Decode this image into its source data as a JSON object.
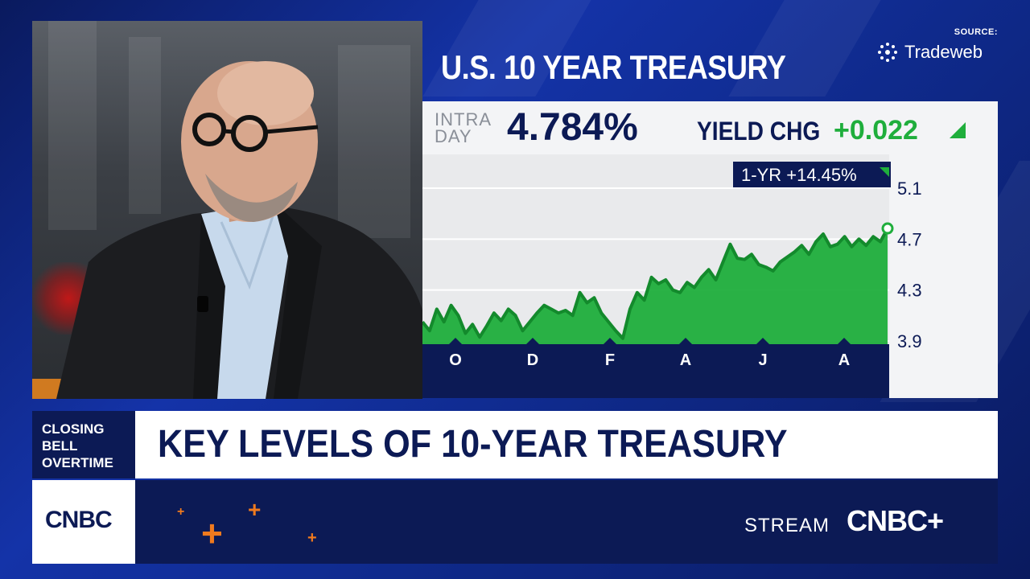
{
  "chart_title": "U.S. 10 YEAR TREASURY",
  "source_label": "SOURCE:",
  "source_brand": "Tradeweb",
  "quote": {
    "intra_line1": "INTRA",
    "intra_line2": "DAY",
    "price": "4.784%",
    "yield_chg_label": "YIELD CHG",
    "yield_chg_value": "+0.022"
  },
  "badge": "1-YR +14.45%",
  "colors": {
    "accent_green": "#1fae3c",
    "navy": "#0c1a55",
    "orange": "#f07a1e"
  },
  "chart_data": {
    "type": "area",
    "title": "U.S. 10 YEAR TREASURY",
    "xlabel": "",
    "ylabel": "",
    "x_tick_labels": [
      "O",
      "D",
      "F",
      "A",
      "J",
      "A"
    ],
    "y_tick_labels": [
      "5.1",
      "4.7",
      "4.3",
      "3.9"
    ],
    "y_ticks": [
      5.1,
      4.7,
      4.3,
      3.9
    ],
    "ylim": [
      3.9,
      5.1
    ],
    "grid": true,
    "series": [
      {
        "values": [
          4.05,
          3.98,
          4.15,
          4.05,
          4.18,
          4.1,
          3.96,
          4.03,
          3.93,
          4.02,
          4.12,
          4.06,
          4.15,
          4.1,
          3.98,
          4.05,
          4.12,
          4.18,
          4.15,
          4.12,
          4.14,
          4.1,
          4.28,
          4.2,
          4.24,
          4.12,
          4.05,
          3.98,
          3.92,
          4.15,
          4.28,
          4.22,
          4.4,
          4.35,
          4.38,
          4.3,
          4.28,
          4.36,
          4.32,
          4.4,
          4.46,
          4.38,
          4.52,
          4.66,
          4.55,
          4.54,
          4.58,
          4.5,
          4.48,
          4.45,
          4.52,
          4.56,
          4.6,
          4.65,
          4.58,
          4.68,
          4.74,
          4.64,
          4.66,
          4.72,
          4.64,
          4.7,
          4.65,
          4.72,
          4.68,
          4.784
        ],
        "last_value": 4.784
      }
    ]
  },
  "lower_third": {
    "show_line1": "CLOSING",
    "show_line2": "BELL",
    "show_line3": "OVERTIME",
    "headline": "KEY LEVELS OF 10-YEAR TREASURY",
    "network": "CNBC",
    "stream_label": "STREAM",
    "stream_brand": "CNBC+"
  }
}
